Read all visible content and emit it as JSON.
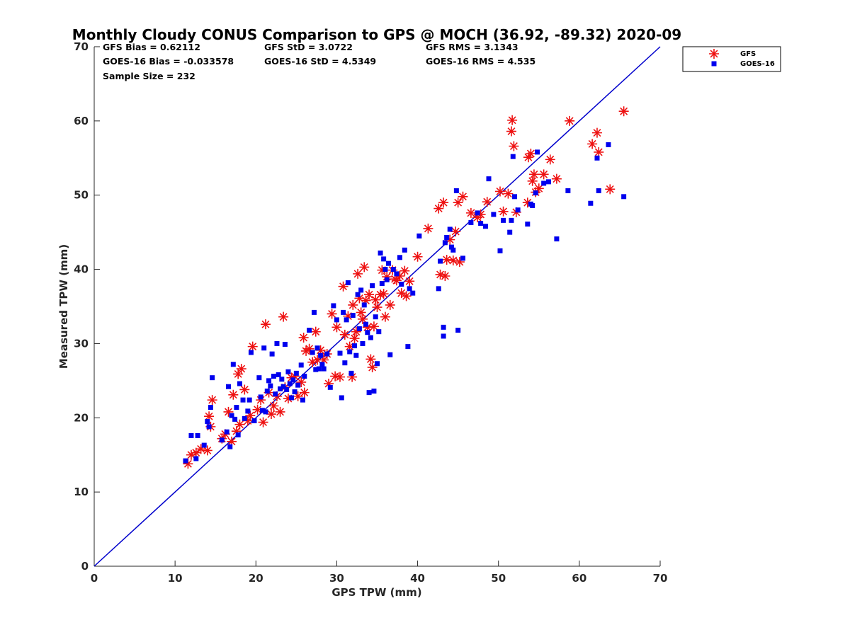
{
  "chart_data": {
    "type": "scatter",
    "title": "Monthly Cloudy CONUS Comparison to GPS @ MOCH (36.92, -89.32) 2020-09",
    "xlabel": "GPS TPW (mm)",
    "ylabel": "Measured TPW (mm)",
    "xlim": [
      0,
      70
    ],
    "ylim": [
      0,
      70
    ],
    "xticks": [
      "0",
      "10",
      "20",
      "30",
      "40",
      "50",
      "60",
      "70"
    ],
    "yticks": [
      "0",
      "10",
      "20",
      "30",
      "40",
      "50",
      "60",
      "70"
    ],
    "grid": false,
    "legend_position": "top-right (outside)",
    "stats": {
      "gfs_bias": "GFS Bias = 0.62112",
      "goes_bias": "GOES-16 Bias = -0.033578",
      "sample_size": "Sample Size = 232",
      "gfs_std": "GFS StD = 3.0722",
      "goes_std": "GOES-16 StD = 4.5349",
      "gfs_rms": "GFS RMS = 3.1343",
      "goes_rms": "GOES-16 RMS = 4.535"
    },
    "reference_line": {
      "x": [
        0,
        70
      ],
      "y": [
        0,
        70
      ],
      "color": "#0000cc"
    },
    "series": [
      {
        "name": "GFS",
        "marker": "asterisk",
        "color": "#ee1111",
        "points": [
          [
            11.6,
            13.8
          ],
          [
            12.0,
            15.0
          ],
          [
            12.6,
            15.3
          ],
          [
            13.2,
            15.8
          ],
          [
            14.0,
            15.6
          ],
          [
            14.2,
            20.2
          ],
          [
            14.4,
            18.8
          ],
          [
            14.6,
            22.4
          ],
          [
            15.8,
            17.2
          ],
          [
            16.2,
            17.8
          ],
          [
            16.6,
            20.8
          ],
          [
            17.0,
            16.8
          ],
          [
            17.2,
            23.1
          ],
          [
            17.6,
            18.2
          ],
          [
            17.8,
            25.9
          ],
          [
            18.0,
            19.1
          ],
          [
            18.2,
            26.6
          ],
          [
            18.6,
            23.8
          ],
          [
            19.0,
            19.6
          ],
          [
            19.3,
            20.3
          ],
          [
            19.6,
            29.6
          ],
          [
            20.2,
            21.1
          ],
          [
            20.6,
            22.4
          ],
          [
            20.9,
            19.4
          ],
          [
            21.2,
            32.6
          ],
          [
            21.6,
            23.4
          ],
          [
            21.9,
            20.5
          ],
          [
            22.2,
            21.6
          ],
          [
            22.6,
            22.9
          ],
          [
            23.0,
            20.8
          ],
          [
            23.4,
            33.6
          ],
          [
            23.6,
            24.1
          ],
          [
            24.0,
            22.6
          ],
          [
            24.4,
            25.4
          ],
          [
            24.8,
            25.6
          ],
          [
            25.2,
            22.9
          ],
          [
            25.6,
            24.8
          ],
          [
            25.9,
            30.8
          ],
          [
            26.0,
            23.4
          ],
          [
            26.2,
            29.0
          ],
          [
            26.6,
            29.3
          ],
          [
            27.0,
            27.5
          ],
          [
            27.4,
            31.6
          ],
          [
            27.6,
            27.8
          ],
          [
            28.0,
            29.1
          ],
          [
            28.4,
            27.8
          ],
          [
            28.8,
            28.6
          ],
          [
            29.0,
            24.6
          ],
          [
            29.4,
            34.0
          ],
          [
            29.8,
            25.6
          ],
          [
            30.0,
            32.2
          ],
          [
            30.4,
            25.5
          ],
          [
            30.8,
            37.7
          ],
          [
            31.0,
            31.2
          ],
          [
            31.4,
            33.7
          ],
          [
            31.6,
            29.6
          ],
          [
            31.9,
            25.5
          ],
          [
            32.0,
            35.2
          ],
          [
            32.2,
            30.7
          ],
          [
            32.4,
            31.6
          ],
          [
            32.6,
            39.4
          ],
          [
            32.8,
            36.1
          ],
          [
            33.0,
            34.2
          ],
          [
            33.2,
            33.3
          ],
          [
            33.4,
            40.3
          ],
          [
            33.6,
            35.8
          ],
          [
            33.8,
            32.2
          ],
          [
            34.0,
            36.6
          ],
          [
            34.2,
            27.9
          ],
          [
            34.4,
            26.8
          ],
          [
            34.6,
            32.3
          ],
          [
            34.8,
            35.9
          ],
          [
            35.0,
            34.9
          ],
          [
            35.4,
            36.6
          ],
          [
            35.6,
            39.9
          ],
          [
            35.8,
            36.7
          ],
          [
            36.0,
            33.6
          ],
          [
            36.2,
            39.0
          ],
          [
            36.6,
            35.2
          ],
          [
            36.9,
            39.9
          ],
          [
            37.2,
            38.7
          ],
          [
            37.4,
            38.5
          ],
          [
            37.8,
            39.1
          ],
          [
            38.0,
            36.8
          ],
          [
            38.4,
            39.8
          ],
          [
            38.6,
            36.4
          ],
          [
            39.0,
            38.4
          ],
          [
            40.0,
            41.7
          ],
          [
            41.3,
            45.5
          ],
          [
            42.6,
            48.2
          ],
          [
            42.8,
            39.3
          ],
          [
            43.2,
            49.0
          ],
          [
            43.4,
            39.1
          ],
          [
            43.6,
            41.3
          ],
          [
            44.0,
            44.0
          ],
          [
            44.4,
            41.2
          ],
          [
            44.7,
            45.1
          ],
          [
            45.0,
            49.0
          ],
          [
            45.2,
            41.0
          ],
          [
            45.6,
            49.8
          ],
          [
            46.6,
            47.6
          ],
          [
            47.4,
            47.0
          ],
          [
            47.8,
            47.4
          ],
          [
            48.6,
            49.1
          ],
          [
            50.2,
            50.5
          ],
          [
            50.6,
            47.8
          ],
          [
            51.2,
            50.2
          ],
          [
            51.6,
            58.6
          ],
          [
            51.7,
            60.1
          ],
          [
            51.9,
            56.6
          ],
          [
            52.2,
            47.7
          ],
          [
            53.6,
            49.0
          ],
          [
            53.7,
            55.1
          ],
          [
            54.0,
            55.6
          ],
          [
            54.2,
            51.9
          ],
          [
            54.4,
            52.8
          ],
          [
            54.6,
            50.4
          ],
          [
            55.0,
            50.9
          ],
          [
            55.6,
            52.8
          ],
          [
            56.4,
            54.8
          ],
          [
            57.2,
            52.2
          ],
          [
            58.8,
            60.0
          ],
          [
            61.6,
            56.9
          ],
          [
            62.2,
            58.4
          ],
          [
            62.4,
            55.8
          ],
          [
            63.8,
            50.8
          ],
          [
            65.5,
            61.3
          ]
        ]
      },
      {
        "name": "GOES-16",
        "marker": "square",
        "color": "#0000ee",
        "points": [
          [
            11.3,
            14.2
          ],
          [
            12.0,
            17.6
          ],
          [
            12.6,
            14.5
          ],
          [
            12.8,
            17.6
          ],
          [
            13.6,
            16.3
          ],
          [
            14.0,
            19.5
          ],
          [
            14.2,
            18.8
          ],
          [
            14.4,
            21.4
          ],
          [
            14.6,
            25.4
          ],
          [
            15.8,
            17.0
          ],
          [
            16.4,
            18.1
          ],
          [
            16.6,
            24.2
          ],
          [
            16.8,
            16.1
          ],
          [
            17.0,
            20.3
          ],
          [
            17.2,
            27.2
          ],
          [
            17.4,
            19.8
          ],
          [
            17.6,
            21.4
          ],
          [
            17.8,
            17.7
          ],
          [
            18.0,
            24.6
          ],
          [
            18.4,
            22.4
          ],
          [
            18.6,
            19.9
          ],
          [
            19.0,
            20.9
          ],
          [
            19.2,
            22.4
          ],
          [
            19.4,
            28.8
          ],
          [
            19.8,
            19.6
          ],
          [
            20.4,
            25.4
          ],
          [
            20.6,
            22.8
          ],
          [
            20.8,
            21.0
          ],
          [
            21.0,
            29.4
          ],
          [
            21.2,
            20.8
          ],
          [
            21.4,
            23.6
          ],
          [
            21.6,
            25.0
          ],
          [
            21.8,
            24.3
          ],
          [
            22.0,
            28.6
          ],
          [
            22.2,
            25.6
          ],
          [
            22.4,
            23.2
          ],
          [
            22.6,
            30.0
          ],
          [
            22.8,
            25.8
          ],
          [
            23.0,
            23.9
          ],
          [
            23.2,
            25.2
          ],
          [
            23.4,
            24.2
          ],
          [
            23.6,
            29.9
          ],
          [
            23.8,
            23.8
          ],
          [
            24.0,
            26.2
          ],
          [
            24.2,
            24.6
          ],
          [
            24.4,
            22.7
          ],
          [
            24.6,
            25.1
          ],
          [
            24.8,
            23.5
          ],
          [
            25.0,
            26.0
          ],
          [
            25.2,
            24.4
          ],
          [
            25.6,
            27.1
          ],
          [
            25.8,
            22.4
          ],
          [
            26.0,
            25.6
          ],
          [
            26.6,
            31.8
          ],
          [
            27.0,
            28.8
          ],
          [
            27.2,
            34.2
          ],
          [
            27.4,
            26.5
          ],
          [
            27.6,
            29.4
          ],
          [
            27.8,
            26.6
          ],
          [
            28.0,
            28.4
          ],
          [
            28.2,
            27.2
          ],
          [
            28.4,
            26.6
          ],
          [
            28.8,
            28.6
          ],
          [
            29.2,
            24.1
          ],
          [
            29.6,
            35.1
          ],
          [
            30.0,
            33.2
          ],
          [
            30.4,
            28.7
          ],
          [
            30.6,
            22.7
          ],
          [
            30.8,
            34.2
          ],
          [
            31.0,
            27.4
          ],
          [
            31.2,
            33.2
          ],
          [
            31.4,
            38.2
          ],
          [
            31.6,
            28.9
          ],
          [
            31.8,
            26.0
          ],
          [
            32.0,
            33.8
          ],
          [
            32.2,
            29.7
          ],
          [
            32.4,
            28.4
          ],
          [
            32.6,
            36.6
          ],
          [
            32.8,
            32.0
          ],
          [
            33.0,
            37.2
          ],
          [
            33.2,
            30.0
          ],
          [
            33.4,
            35.2
          ],
          [
            33.6,
            32.6
          ],
          [
            33.8,
            31.5
          ],
          [
            34.0,
            23.4
          ],
          [
            34.2,
            30.8
          ],
          [
            34.4,
            37.8
          ],
          [
            34.6,
            23.6
          ],
          [
            34.8,
            33.6
          ],
          [
            35.0,
            27.3
          ],
          [
            35.2,
            31.6
          ],
          [
            35.4,
            42.2
          ],
          [
            35.6,
            38.1
          ],
          [
            35.8,
            41.4
          ],
          [
            36.0,
            40.0
          ],
          [
            36.2,
            38.6
          ],
          [
            36.4,
            40.8
          ],
          [
            36.6,
            28.5
          ],
          [
            37.0,
            40.0
          ],
          [
            37.4,
            39.4
          ],
          [
            37.8,
            41.6
          ],
          [
            38.0,
            38.0
          ],
          [
            38.4,
            42.6
          ],
          [
            38.8,
            29.6
          ],
          [
            39.0,
            37.4
          ],
          [
            39.4,
            36.8
          ],
          [
            40.2,
            44.5
          ],
          [
            42.6,
            37.4
          ],
          [
            42.8,
            41.1
          ],
          [
            43.2,
            32.2
          ],
          [
            43.2,
            31.0
          ],
          [
            43.4,
            43.6
          ],
          [
            43.6,
            44.3
          ],
          [
            44.0,
            45.4
          ],
          [
            44.2,
            43.0
          ],
          [
            44.4,
            42.6
          ],
          [
            44.8,
            50.6
          ],
          [
            45.0,
            31.8
          ],
          [
            45.6,
            41.5
          ],
          [
            46.6,
            46.3
          ],
          [
            47.4,
            47.6
          ],
          [
            47.8,
            46.2
          ],
          [
            48.4,
            45.8
          ],
          [
            48.8,
            52.2
          ],
          [
            49.4,
            47.4
          ],
          [
            50.2,
            42.5
          ],
          [
            50.6,
            46.6
          ],
          [
            51.4,
            45.0
          ],
          [
            51.6,
            46.6
          ],
          [
            51.8,
            55.2
          ],
          [
            52.0,
            49.8
          ],
          [
            52.4,
            48.0
          ],
          [
            53.6,
            46.1
          ],
          [
            54.0,
            48.8
          ],
          [
            54.2,
            48.6
          ],
          [
            54.6,
            50.3
          ],
          [
            54.8,
            55.8
          ],
          [
            55.6,
            51.6
          ],
          [
            56.2,
            51.8
          ],
          [
            57.2,
            44.1
          ],
          [
            58.6,
            50.6
          ],
          [
            61.4,
            48.9
          ],
          [
            62.2,
            55.0
          ],
          [
            62.4,
            50.6
          ],
          [
            63.6,
            56.8
          ],
          [
            65.5,
            49.8
          ]
        ]
      }
    ]
  }
}
